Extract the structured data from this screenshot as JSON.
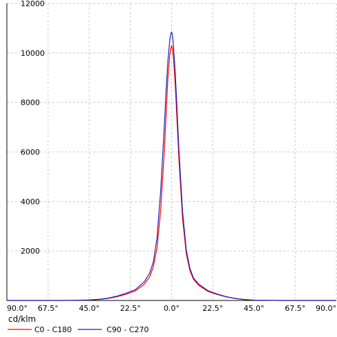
{
  "chart_data": {
    "type": "line",
    "unit_label": "cd/klm",
    "x_tick_labels": [
      "90.0°",
      "67.5°",
      "45.0°",
      "22.5°",
      "0.0°",
      "22.5°",
      "45.0°",
      "67.5°",
      "90.0°"
    ],
    "x_tick_values": [
      -90,
      -67.5,
      -45,
      -22.5,
      0,
      22.5,
      45,
      67.5,
      90
    ],
    "xlim": [
      -90,
      90
    ],
    "y_ticks": [
      2000,
      4000,
      6000,
      8000,
      10000,
      12000
    ],
    "ylim": [
      0,
      12000
    ],
    "grid": true,
    "legend_position": "bottom-left",
    "series": [
      {
        "name": "C0 - C180",
        "color": "#ff0000",
        "x": [
          -90,
          -60,
          -45,
          -40,
          -35,
          -30,
          -25,
          -20,
          -15,
          -12,
          -10,
          -8,
          -6,
          -4,
          -3,
          -2,
          -1,
          -0.5,
          0,
          0.5,
          1,
          2,
          3,
          4,
          6,
          8,
          10,
          12,
          15,
          20,
          25,
          30,
          35,
          40,
          45,
          60,
          90
        ],
        "y": [
          0,
          0,
          15,
          40,
          80,
          150,
          250,
          380,
          650,
          950,
          1350,
          2100,
          3600,
          6000,
          7500,
          9000,
          9900,
          10150,
          10300,
          10150,
          9800,
          8700,
          7200,
          5700,
          3300,
          1900,
          1200,
          850,
          600,
          360,
          240,
          140,
          75,
          35,
          12,
          0,
          0
        ]
      },
      {
        "name": "C90 - C270",
        "color": "#1f1fb4",
        "x": [
          -90,
          -60,
          -45,
          -40,
          -35,
          -30,
          -25,
          -20,
          -15,
          -12,
          -10,
          -8,
          -6,
          -4,
          -3,
          -2,
          -1,
          -0.5,
          0,
          0.5,
          1,
          2,
          3,
          4,
          6,
          8,
          10,
          12,
          15,
          20,
          25,
          30,
          35,
          40,
          45,
          60,
          90
        ],
        "y": [
          0,
          0,
          20,
          45,
          90,
          170,
          290,
          430,
          750,
          1100,
          1550,
          2500,
          4400,
          7000,
          8500,
          9700,
          10500,
          10750,
          10850,
          10700,
          10300,
          9200,
          7700,
          6100,
          3600,
          2050,
          1300,
          900,
          650,
          390,
          260,
          150,
          80,
          40,
          15,
          0,
          0
        ]
      }
    ]
  }
}
